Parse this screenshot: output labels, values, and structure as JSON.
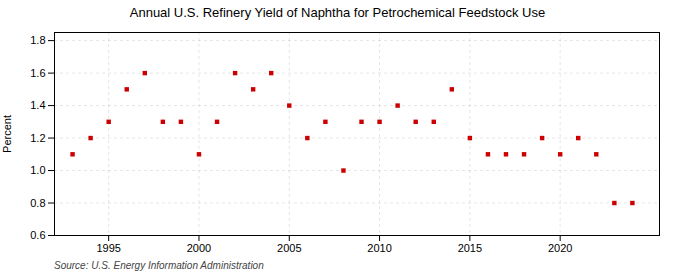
{
  "chart_data": {
    "type": "scatter",
    "title": "Annual U.S. Refinery Yield of Naphtha for Petrochemical Feedstock Use",
    "ylabel": "Percent",
    "source": "Source: U.S. Energy Information Administration",
    "x": [
      1993,
      1994,
      1995,
      1996,
      1997,
      1998,
      1999,
      2000,
      2001,
      2002,
      2003,
      2004,
      2005,
      2006,
      2007,
      2008,
      2009,
      2010,
      2011,
      2012,
      2013,
      2014,
      2015,
      2016,
      2017,
      2018,
      2019,
      2020,
      2021,
      2022,
      2023,
      2024
    ],
    "values": [
      1.1,
      1.2,
      1.3,
      1.5,
      1.6,
      1.3,
      1.3,
      1.1,
      1.3,
      1.6,
      1.5,
      1.6,
      1.4,
      1.2,
      1.3,
      1.0,
      1.3,
      1.3,
      1.4,
      1.3,
      1.3,
      1.5,
      1.2,
      1.1,
      1.1,
      1.1,
      1.2,
      1.1,
      1.2,
      1.1,
      0.8,
      0.8
    ],
    "color": "#cc0000",
    "marker": "square",
    "xlim": [
      1992.0,
      2025.5
    ],
    "xticks": [
      1995,
      2000,
      2005,
      2010,
      2015,
      2020
    ],
    "ylim": [
      0.6,
      1.85
    ],
    "yticks": [
      0.6,
      0.8,
      {
        "value": 1.0,
        "label": "1.0"
      },
      1.2,
      1.4,
      1.6,
      1.8
    ],
    "grid": true
  }
}
